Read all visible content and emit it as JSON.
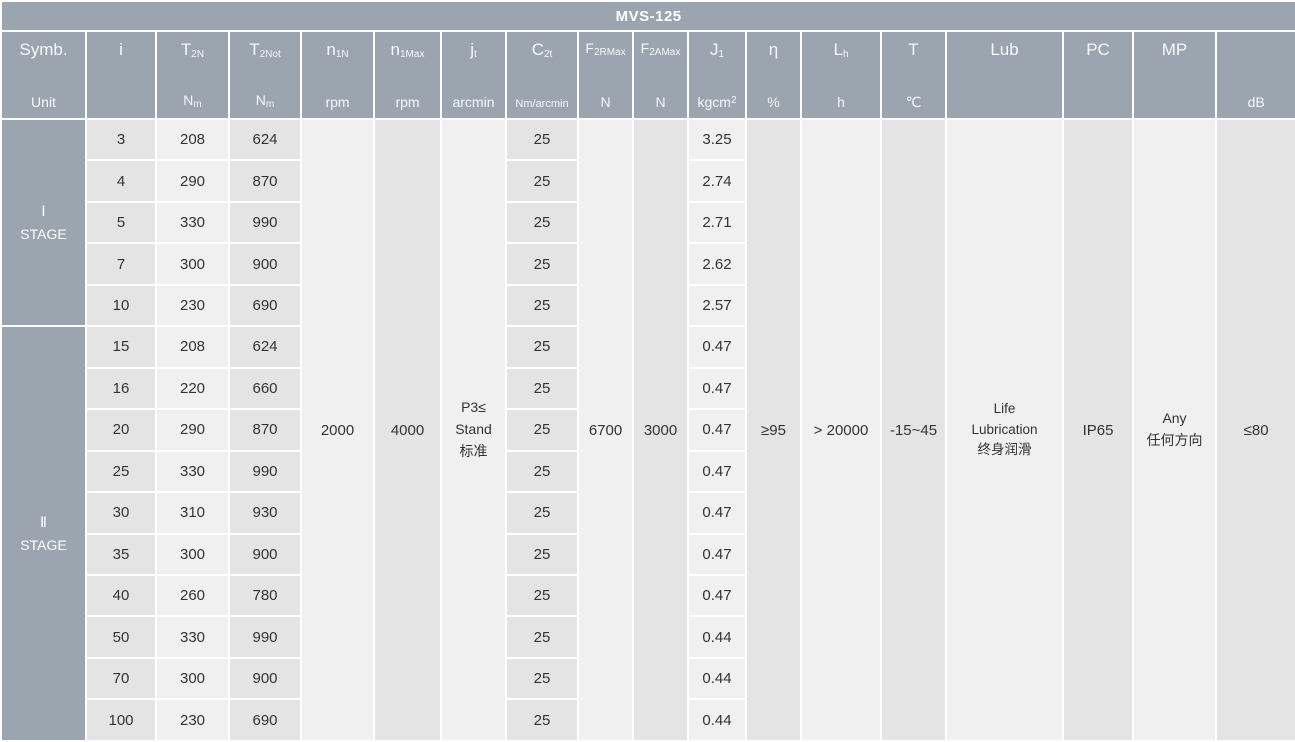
{
  "title": "MVS-125",
  "colors": {
    "header_bg": "#9aa5af",
    "cell_light": "#f0f0f0",
    "cell_dark": "#e4e4e4",
    "text": "#333333",
    "header_text": "#f8f8f8"
  },
  "table": {
    "header": [
      {
        "key": "symb-unit",
        "sym": "Symb.",
        "unit": "Unit"
      },
      {
        "key": "i",
        "sym": "i",
        "unit": ""
      },
      {
        "key": "t2n",
        "sym": "T",
        "sym_sub": "2N",
        "unit": "N",
        "unit_sub": "m"
      },
      {
        "key": "t2not",
        "sym": "T",
        "sym_sub": "2Not",
        "unit": "N",
        "unit_sub": "m"
      },
      {
        "key": "n1n",
        "sym": "n",
        "sym_sub": "1N",
        "unit": "rpm"
      },
      {
        "key": "n1max",
        "sym": "n",
        "sym_sub": "1Max",
        "unit": "rpm"
      },
      {
        "key": "jt",
        "sym": "j",
        "sym_sub": "t",
        "unit": "arcmin"
      },
      {
        "key": "c2t",
        "sym": "C",
        "sym_sub": "2t",
        "unit": "Nm/arcmin"
      },
      {
        "key": "f2rmax",
        "sym": "F",
        "sym_sub": "2RMax",
        "unit": "N"
      },
      {
        "key": "f2amax",
        "sym": "F",
        "sym_sub": "2AMax",
        "unit": "N"
      },
      {
        "key": "j1",
        "sym": "J",
        "sym_sub": "1",
        "unit": "kgcm",
        "unit_sup": "2"
      },
      {
        "key": "eta",
        "sym": "η",
        "unit": "%"
      },
      {
        "key": "lh",
        "sym": "L",
        "sym_sub": "h",
        "unit": "h"
      },
      {
        "key": "t",
        "sym": "T",
        "unit": "℃"
      },
      {
        "key": "lub",
        "sym": "Lub",
        "unit": ""
      },
      {
        "key": "pc",
        "sym": "PC",
        "unit": ""
      },
      {
        "key": "mp",
        "sym": "MP",
        "unit": ""
      },
      {
        "key": "db",
        "sym": "",
        "unit": "dB"
      }
    ],
    "stages": [
      {
        "label_num": "Ⅰ",
        "label_text": "STAGE",
        "rows": [
          {
            "i": "3",
            "t2n": "208",
            "t2not": "624",
            "c2t": "25",
            "j1": "3.25"
          },
          {
            "i": "4",
            "t2n": "290",
            "t2not": "870",
            "c2t": "25",
            "j1": "2.74"
          },
          {
            "i": "5",
            "t2n": "330",
            "t2not": "990",
            "c2t": "25",
            "j1": "2.71"
          },
          {
            "i": "7",
            "t2n": "300",
            "t2not": "900",
            "c2t": "25",
            "j1": "2.62"
          },
          {
            "i": "10",
            "t2n": "230",
            "t2not": "690",
            "c2t": "25",
            "j1": "2.57"
          }
        ]
      },
      {
        "label_num": "Ⅱ",
        "label_text": "STAGE",
        "rows": [
          {
            "i": "15",
            "t2n": "208",
            "t2not": "624",
            "c2t": "25",
            "j1": "0.47"
          },
          {
            "i": "16",
            "t2n": "220",
            "t2not": "660",
            "c2t": "25",
            "j1": "0.47"
          },
          {
            "i": "20",
            "t2n": "290",
            "t2not": "870",
            "c2t": "25",
            "j1": "0.47"
          },
          {
            "i": "25",
            "t2n": "330",
            "t2not": "990",
            "c2t": "25",
            "j1": "0.47"
          },
          {
            "i": "30",
            "t2n": "310",
            "t2not": "930",
            "c2t": "25",
            "j1": "0.47"
          },
          {
            "i": "35",
            "t2n": "300",
            "t2not": "900",
            "c2t": "25",
            "j1": "0.47"
          },
          {
            "i": "40",
            "t2n": "260",
            "t2not": "780",
            "c2t": "25",
            "j1": "0.47"
          },
          {
            "i": "50",
            "t2n": "330",
            "t2not": "990",
            "c2t": "25",
            "j1": "0.44"
          },
          {
            "i": "70",
            "t2n": "300",
            "t2not": "900",
            "c2t": "25",
            "j1": "0.44"
          },
          {
            "i": "100",
            "t2n": "230",
            "t2not": "690",
            "c2t": "25",
            "j1": "0.44"
          }
        ]
      }
    ],
    "merged": {
      "n1n": "2000",
      "n1max": "4000",
      "jt": [
        "P3≤",
        "Stand",
        "标准"
      ],
      "f2rmax": "6700",
      "f2amax": "3000",
      "eta": "≥95",
      "lh": "> 20000",
      "t": "-15~45",
      "lub": [
        "Life",
        "Lubrication",
        "终身润滑"
      ],
      "pc": "IP65",
      "mp": [
        "Any",
        "任何方向"
      ],
      "db": "≤80"
    }
  }
}
